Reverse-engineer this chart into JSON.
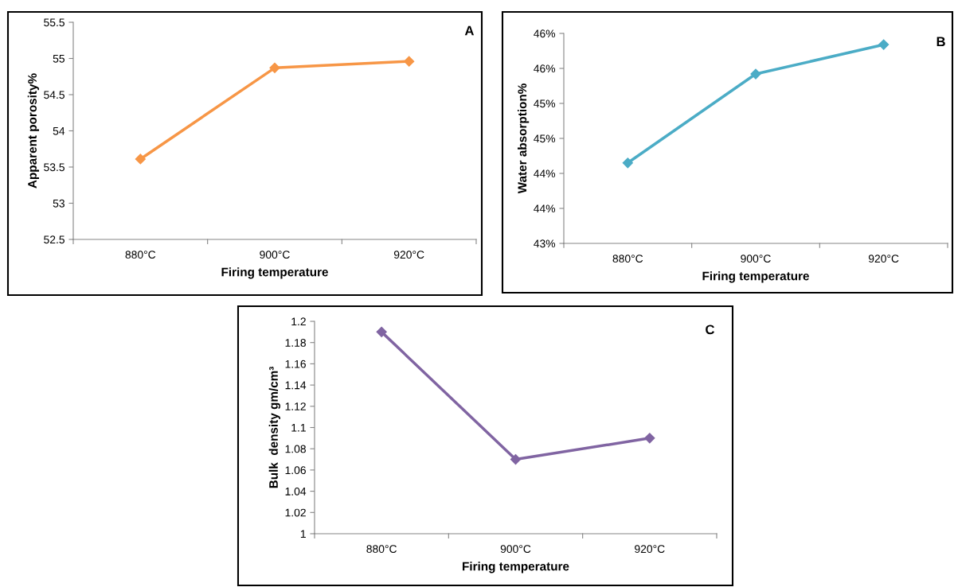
{
  "chart_data": [
    {
      "type": "line",
      "categories": [
        "880°C",
        "900°C",
        "920°C"
      ],
      "xlabel": "Firing temperature",
      "ylabel": "Apparent porosity%",
      "annotations": [
        "A"
      ],
      "marker": "diamond",
      "line_style": "solid",
      "grid": false,
      "legend": false,
      "series": [
        {
          "color": "#f79646",
          "values": [
            53.61,
            54.87,
            54.96
          ]
        }
      ],
      "ylim": [
        52.5,
        55.5
      ],
      "yticks": [
        52.5,
        53,
        53.5,
        54,
        54.5,
        55,
        55.5
      ]
    },
    {
      "type": "line",
      "categories": [
        "880°C",
        "900°C",
        "920°C"
      ],
      "xlabel": "Firing temperature",
      "ylabel": "Water absorption%",
      "annotations": [
        "B"
      ],
      "marker": "diamond",
      "line_style": "solid",
      "grid": false,
      "legend": false,
      "series": [
        {
          "color": "#4bacc6",
          "values": [
            44.15,
            45.42,
            45.84
          ]
        }
      ],
      "ylim": [
        43,
        46
      ],
      "yticks": [
        {
          "value": 43,
          "label": "43%"
        },
        {
          "value": 43.5,
          "label": "44%"
        },
        {
          "value": 44,
          "label": "44%"
        },
        {
          "value": 44.5,
          "label": "45%"
        },
        {
          "value": 45,
          "label": "45%"
        },
        {
          "value": 45.5,
          "label": "46%"
        },
        {
          "value": 46,
          "label": "46%"
        }
      ]
    },
    {
      "type": "line",
      "categories": [
        "880°C",
        "900°C",
        "920°C"
      ],
      "xlabel": "Firing temperature",
      "ylabel": "Bulk  density gm/cm³",
      "annotations": [
        "C"
      ],
      "marker": "diamond",
      "line_style": "solid",
      "grid": false,
      "legend": false,
      "series": [
        {
          "color": "#8064a2",
          "values": [
            1.19,
            1.07,
            1.09
          ]
        }
      ],
      "ylim": [
        1,
        1.2
      ],
      "yticks": [
        1,
        1.02,
        1.04,
        1.06,
        1.08,
        1.1,
        1.12,
        1.14,
        1.16,
        1.18,
        1.2
      ]
    }
  ]
}
